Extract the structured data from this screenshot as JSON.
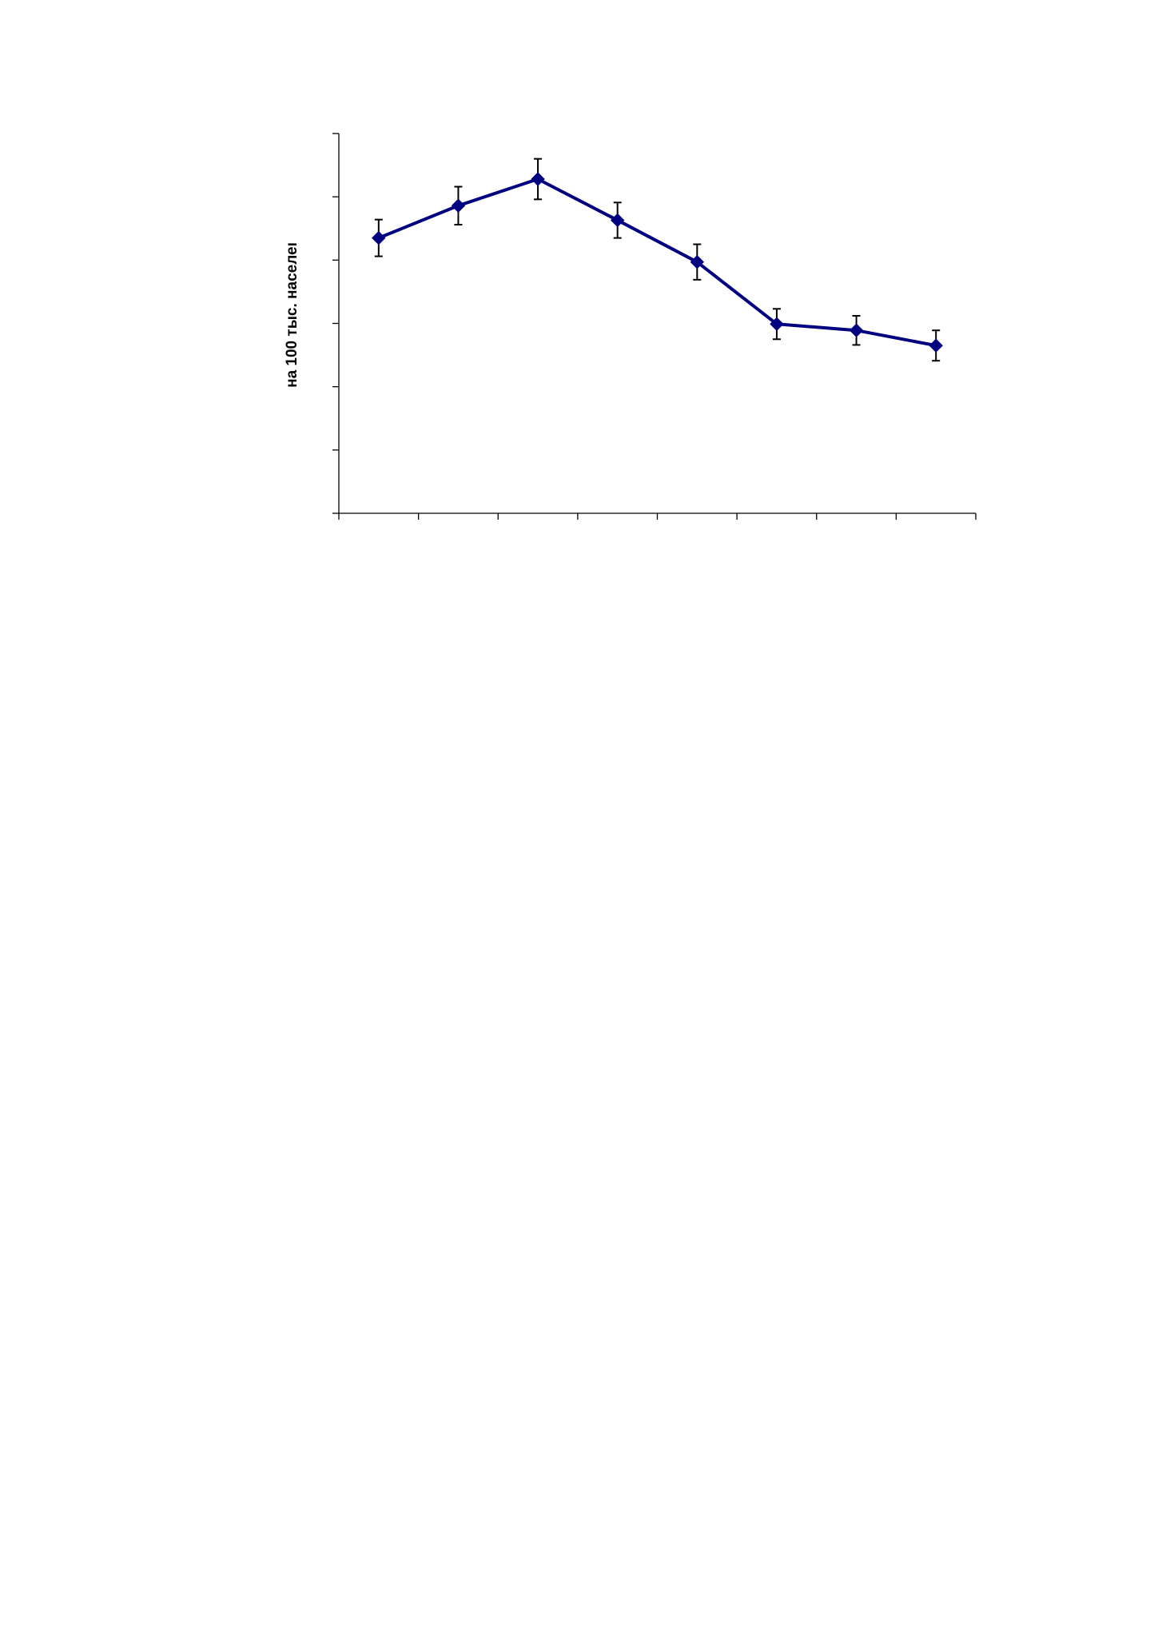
{
  "chart_data": {
    "type": "line",
    "title": "",
    "xlabel": "",
    "ylabel": "на 100 тыс. населеı",
    "x": [
      1,
      2,
      3,
      4,
      5,
      6,
      7,
      8
    ],
    "ylim": [
      0,
      6
    ],
    "y_ticks_count": 7,
    "x_ticks_count": 9,
    "grid": false,
    "series": [
      {
        "values": [
          4.35,
          4.86,
          5.28,
          4.63,
          3.97,
          2.99,
          2.89,
          2.65
        ],
        "error": [
          0.29,
          0.3,
          0.32,
          0.28,
          0.28,
          0.24,
          0.23,
          0.24
        ],
        "color": "#000080",
        "marker": "diamond"
      }
    ],
    "error_bar_color": "#000000",
    "axis_color": "#000000"
  }
}
